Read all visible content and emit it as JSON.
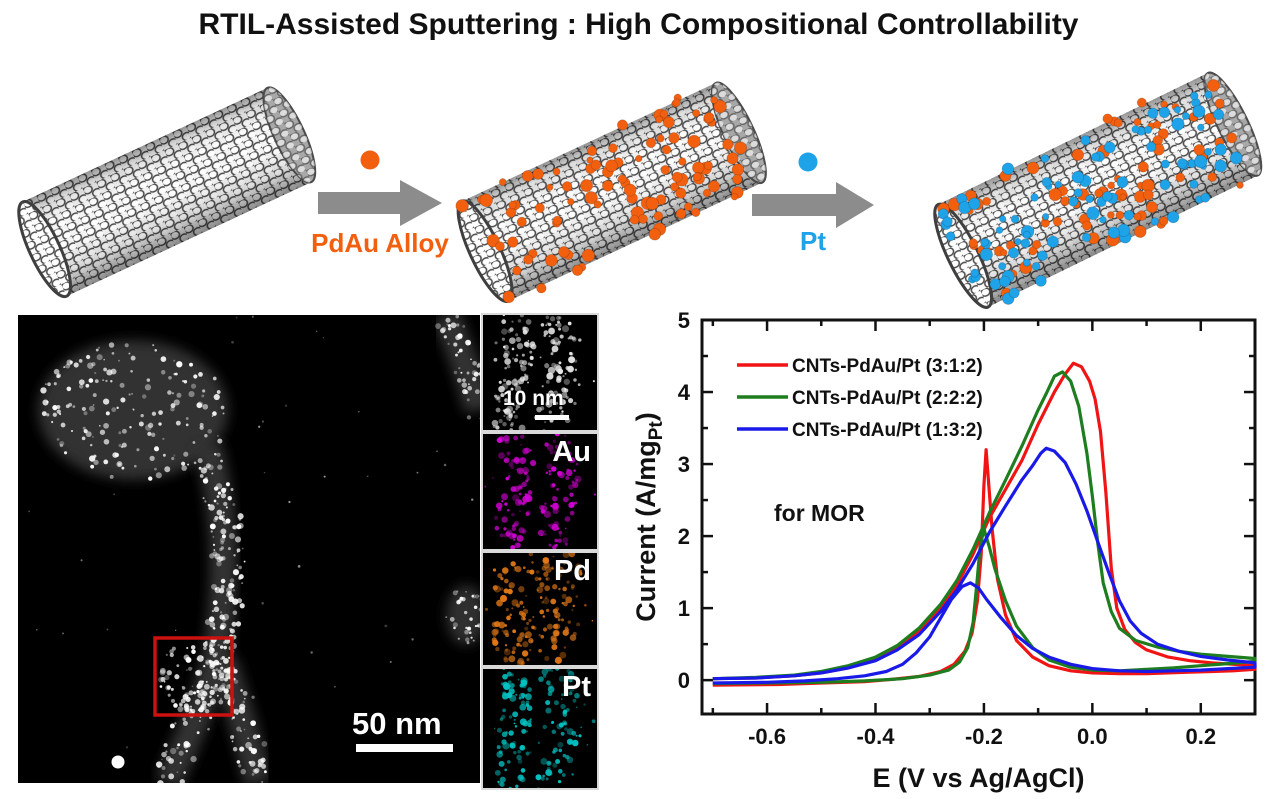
{
  "title": "RTIL-Assisted Sputtering :  High Compositional Controllability",
  "schematic": {
    "step1_label": "PdAu Alloy",
    "step2_label": "Pt",
    "pdau_color": "#F2600F",
    "pt_color": "#1FA3E8",
    "arrow_color": "#8C8C8C"
  },
  "microscopy": {
    "main_scale_bar": "50 nm",
    "inset_scale_bar": "10 nm",
    "roi_color": "#CC1111",
    "eds_panels": [
      {
        "label": "Au",
        "color": "#D400D4"
      },
      {
        "label": "Pd",
        "color": "#E07818"
      },
      {
        "label": "Pt",
        "color": "#00C2C2"
      }
    ]
  },
  "chart_data": {
    "type": "line",
    "subtype": "cyclic-voltammogram",
    "title": "",
    "xlabel": "E (V vs Ag/AgCl)",
    "ylabel": "Current (A/mg_Pt)",
    "ylabel_parts": {
      "main": "Current (A/mg",
      "sub": "Pt",
      "close": ")"
    },
    "annotation": "for MOR",
    "xlim": [
      -0.72,
      0.3
    ],
    "ylim": [
      -0.47,
      5.0
    ],
    "x_tick_values": [
      -0.6,
      -0.4,
      -0.2,
      0.0,
      0.2
    ],
    "x_tick_labels": [
      "-0.6",
      "-0.4",
      "-0.2",
      "0.0",
      "0.2"
    ],
    "y_tick_values": [
      0,
      1,
      2,
      3,
      4,
      5
    ],
    "y_tick_labels": [
      "0",
      "1",
      "2",
      "3",
      "4",
      "5"
    ],
    "x_minor_step": 0.1,
    "y_minor_step": 0.5,
    "grid": false,
    "legend_position": "upper-left-inside",
    "series": [
      {
        "name": "CNTs-PdAu/Pt (3:1:2)",
        "color": "#F01414",
        "forward_peak": {
          "E": -0.035,
          "I": 4.4
        },
        "backward_peak": {
          "E": -0.195,
          "I": 3.2
        },
        "points": [
          [
            -0.7,
            0.02
          ],
          [
            -0.62,
            0.03
          ],
          [
            -0.55,
            0.06
          ],
          [
            -0.5,
            0.1
          ],
          [
            -0.45,
            0.17
          ],
          [
            -0.4,
            0.29
          ],
          [
            -0.36,
            0.45
          ],
          [
            -0.32,
            0.68
          ],
          [
            -0.28,
            1.0
          ],
          [
            -0.25,
            1.32
          ],
          [
            -0.22,
            1.75
          ],
          [
            -0.19,
            2.25
          ],
          [
            -0.16,
            2.65
          ],
          [
            -0.13,
            3.05
          ],
          [
            -0.1,
            3.55
          ],
          [
            -0.07,
            4.0
          ],
          [
            -0.05,
            4.25
          ],
          [
            -0.035,
            4.4
          ],
          [
            -0.02,
            4.35
          ],
          [
            -0.005,
            4.15
          ],
          [
            0.005,
            3.9
          ],
          [
            0.015,
            3.45
          ],
          [
            0.025,
            2.6
          ],
          [
            0.035,
            1.55
          ],
          [
            0.045,
            1.0
          ],
          [
            0.06,
            0.7
          ],
          [
            0.08,
            0.52
          ],
          [
            0.1,
            0.42
          ],
          [
            0.14,
            0.32
          ],
          [
            0.18,
            0.27
          ],
          [
            0.22,
            0.24
          ],
          [
            0.26,
            0.22
          ],
          [
            0.3,
            0.2
          ],
          [
            0.3,
            0.15
          ],
          [
            0.26,
            0.13
          ],
          [
            0.22,
            0.12
          ],
          [
            0.18,
            0.11
          ],
          [
            0.14,
            0.1
          ],
          [
            0.1,
            0.09
          ],
          [
            0.05,
            0.09
          ],
          [
            0.0,
            0.1
          ],
          [
            -0.04,
            0.13
          ],
          [
            -0.08,
            0.2
          ],
          [
            -0.11,
            0.32
          ],
          [
            -0.14,
            0.55
          ],
          [
            -0.16,
            0.9
          ],
          [
            -0.175,
            1.4
          ],
          [
            -0.185,
            2.1
          ],
          [
            -0.192,
            2.8
          ],
          [
            -0.196,
            3.2
          ],
          [
            -0.2,
            2.7
          ],
          [
            -0.205,
            1.75
          ],
          [
            -0.212,
            1.1
          ],
          [
            -0.222,
            0.65
          ],
          [
            -0.235,
            0.4
          ],
          [
            -0.255,
            0.22
          ],
          [
            -0.28,
            0.12
          ],
          [
            -0.32,
            0.05
          ],
          [
            -0.37,
            0.01
          ],
          [
            -0.42,
            -0.02
          ],
          [
            -0.5,
            -0.04
          ],
          [
            -0.58,
            -0.06
          ],
          [
            -0.7,
            -0.07
          ]
        ]
      },
      {
        "name": "CNTs-PdAu/Pt (2:2:2)",
        "color": "#1E7D1E",
        "forward_peak": {
          "E": -0.07,
          "I": 4.25
        },
        "backward_peak": {
          "E": -0.2,
          "I": 2.15
        },
        "points": [
          [
            -0.7,
            0.02
          ],
          [
            -0.62,
            0.04
          ],
          [
            -0.55,
            0.07
          ],
          [
            -0.5,
            0.12
          ],
          [
            -0.45,
            0.2
          ],
          [
            -0.4,
            0.32
          ],
          [
            -0.36,
            0.48
          ],
          [
            -0.32,
            0.72
          ],
          [
            -0.28,
            1.05
          ],
          [
            -0.25,
            1.38
          ],
          [
            -0.22,
            1.82
          ],
          [
            -0.19,
            2.32
          ],
          [
            -0.16,
            2.78
          ],
          [
            -0.13,
            3.25
          ],
          [
            -0.1,
            3.75
          ],
          [
            -0.085,
            3.98
          ],
          [
            -0.07,
            4.22
          ],
          [
            -0.055,
            4.28
          ],
          [
            -0.04,
            4.15
          ],
          [
            -0.025,
            3.8
          ],
          [
            -0.01,
            3.15
          ],
          [
            0.0,
            2.55
          ],
          [
            0.01,
            1.9
          ],
          [
            0.02,
            1.35
          ],
          [
            0.035,
            0.95
          ],
          [
            0.05,
            0.72
          ],
          [
            0.08,
            0.55
          ],
          [
            0.12,
            0.46
          ],
          [
            0.16,
            0.4
          ],
          [
            0.2,
            0.36
          ],
          [
            0.25,
            0.33
          ],
          [
            0.3,
            0.3
          ],
          [
            0.3,
            0.26
          ],
          [
            0.25,
            0.23
          ],
          [
            0.2,
            0.2
          ],
          [
            0.15,
            0.17
          ],
          [
            0.1,
            0.15
          ],
          [
            0.05,
            0.13
          ],
          [
            0.0,
            0.14
          ],
          [
            -0.04,
            0.18
          ],
          [
            -0.08,
            0.28
          ],
          [
            -0.11,
            0.45
          ],
          [
            -0.14,
            0.75
          ],
          [
            -0.16,
            1.1
          ],
          [
            -0.18,
            1.55
          ],
          [
            -0.19,
            1.85
          ],
          [
            -0.2,
            2.1
          ],
          [
            -0.207,
            1.85
          ],
          [
            -0.213,
            1.35
          ],
          [
            -0.22,
            0.8
          ],
          [
            -0.23,
            0.45
          ],
          [
            -0.245,
            0.25
          ],
          [
            -0.265,
            0.14
          ],
          [
            -0.3,
            0.07
          ],
          [
            -0.35,
            0.02
          ],
          [
            -0.42,
            -0.01
          ],
          [
            -0.5,
            -0.03
          ],
          [
            -0.6,
            -0.04
          ],
          [
            -0.7,
            -0.05
          ]
        ]
      },
      {
        "name": "CNTs-PdAu/Pt (1:3:2)",
        "color": "#1A1AE8",
        "forward_peak": {
          "E": -0.085,
          "I": 3.2
        },
        "backward_peak": {
          "E": -0.225,
          "I": 1.35
        },
        "points": [
          [
            -0.7,
            0.02
          ],
          [
            -0.62,
            0.03
          ],
          [
            -0.55,
            0.06
          ],
          [
            -0.5,
            0.1
          ],
          [
            -0.45,
            0.17
          ],
          [
            -0.4,
            0.27
          ],
          [
            -0.36,
            0.42
          ],
          [
            -0.32,
            0.63
          ],
          [
            -0.28,
            0.95
          ],
          [
            -0.25,
            1.25
          ],
          [
            -0.22,
            1.62
          ],
          [
            -0.19,
            2.05
          ],
          [
            -0.16,
            2.42
          ],
          [
            -0.13,
            2.78
          ],
          [
            -0.11,
            2.98
          ],
          [
            -0.095,
            3.15
          ],
          [
            -0.085,
            3.22
          ],
          [
            -0.07,
            3.18
          ],
          [
            -0.05,
            3.02
          ],
          [
            -0.03,
            2.72
          ],
          [
            -0.01,
            2.35
          ],
          [
            0.01,
            1.92
          ],
          [
            0.03,
            1.5
          ],
          [
            0.05,
            1.1
          ],
          [
            0.07,
            0.82
          ],
          [
            0.09,
            0.65
          ],
          [
            0.12,
            0.5
          ],
          [
            0.16,
            0.4
          ],
          [
            0.2,
            0.33
          ],
          [
            0.25,
            0.28
          ],
          [
            0.3,
            0.24
          ],
          [
            0.3,
            0.18
          ],
          [
            0.25,
            0.16
          ],
          [
            0.2,
            0.14
          ],
          [
            0.15,
            0.13
          ],
          [
            0.1,
            0.12
          ],
          [
            0.05,
            0.13
          ],
          [
            0.0,
            0.16
          ],
          [
            -0.04,
            0.22
          ],
          [
            -0.08,
            0.32
          ],
          [
            -0.11,
            0.44
          ],
          [
            -0.14,
            0.62
          ],
          [
            -0.17,
            0.88
          ],
          [
            -0.195,
            1.12
          ],
          [
            -0.21,
            1.28
          ],
          [
            -0.225,
            1.35
          ],
          [
            -0.24,
            1.3
          ],
          [
            -0.26,
            1.12
          ],
          [
            -0.28,
            0.86
          ],
          [
            -0.3,
            0.6
          ],
          [
            -0.325,
            0.38
          ],
          [
            -0.35,
            0.22
          ],
          [
            -0.38,
            0.12
          ],
          [
            -0.42,
            0.06
          ],
          [
            -0.47,
            0.02
          ],
          [
            -0.53,
            -0.01
          ],
          [
            -0.6,
            -0.03
          ],
          [
            -0.7,
            -0.04
          ]
        ]
      }
    ]
  }
}
